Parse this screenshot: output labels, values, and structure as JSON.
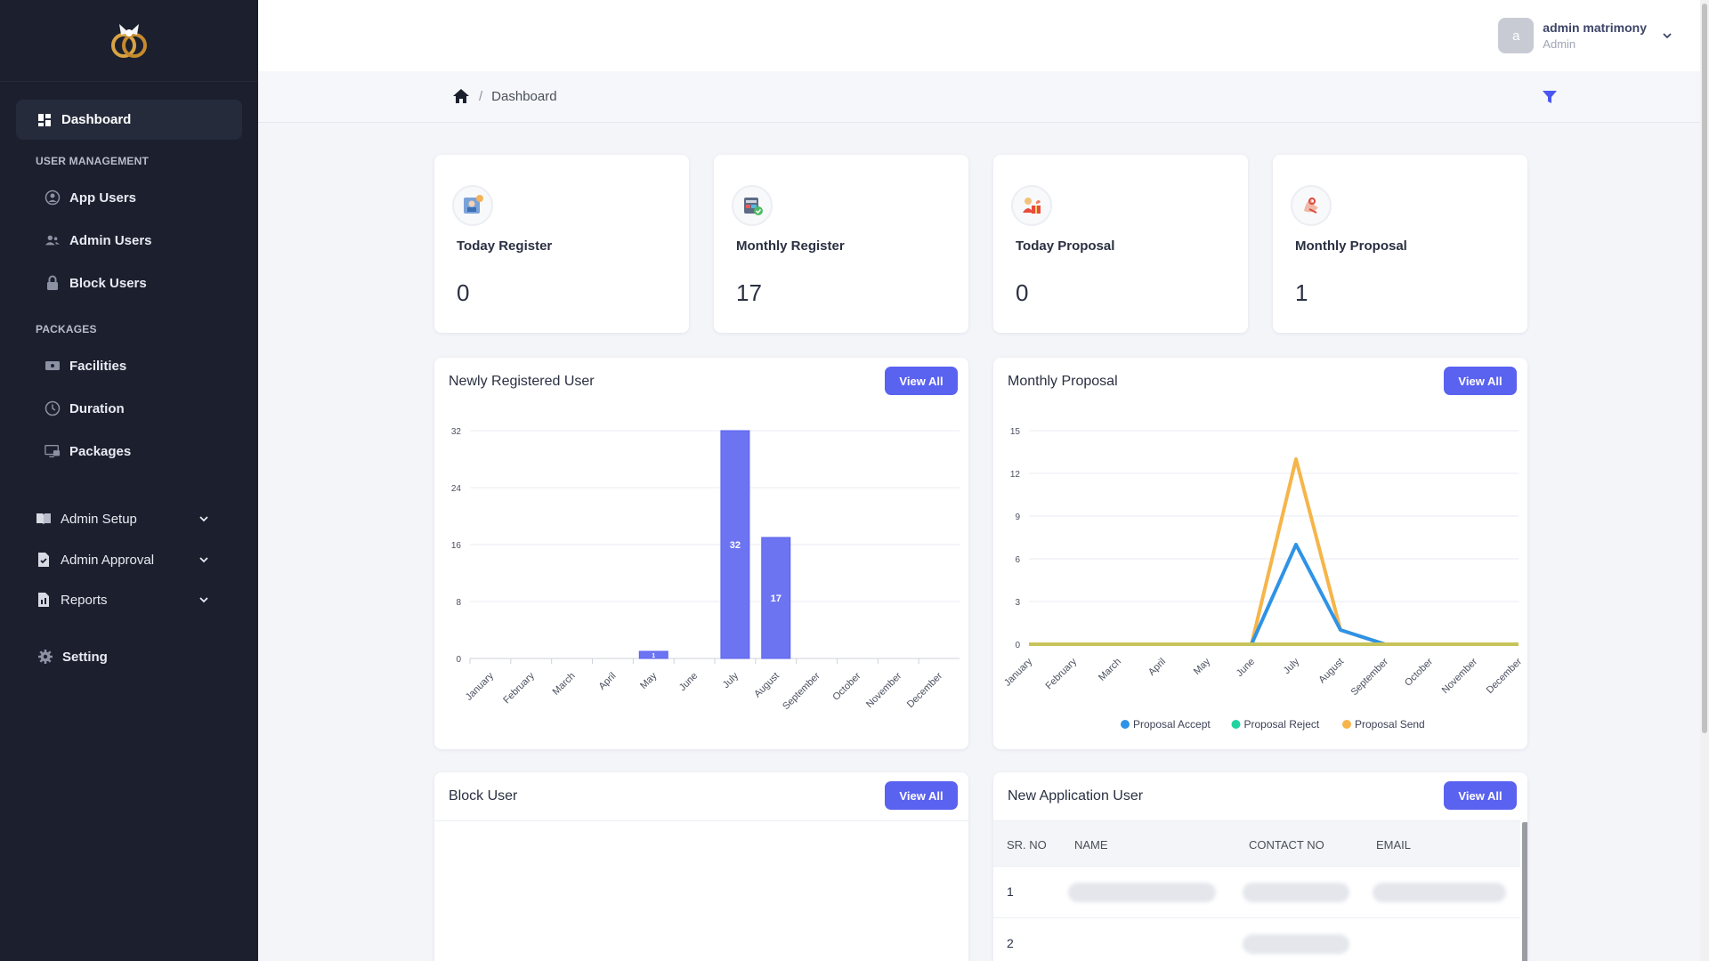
{
  "sidebar": {
    "active": "Dashboard",
    "sections": {
      "user_management": "USER MANAGEMENT",
      "packages": "PACKAGES"
    },
    "user_items": [
      "App Users",
      "Admin Users",
      "Block Users"
    ],
    "package_items": [
      "Facilities",
      "Duration",
      "Packages"
    ],
    "groups": [
      "Admin Setup",
      "Admin Approval",
      "Reports"
    ],
    "setting": "Setting"
  },
  "topbar": {
    "avatar_letter": "a",
    "user_name": "admin matrimony",
    "user_role": "Admin"
  },
  "breadcrumb": {
    "current": "Dashboard"
  },
  "stats": [
    {
      "label": "Today Register",
      "value": "0"
    },
    {
      "label": "Monthly Register",
      "value": "17"
    },
    {
      "label": "Today Proposal",
      "value": "0"
    },
    {
      "label": "Monthly Proposal",
      "value": "1"
    }
  ],
  "panels": {
    "newly_registered": {
      "title": "Newly Registered User",
      "button": "View All"
    },
    "monthly_proposal": {
      "title": "Monthly Proposal",
      "button": "View All"
    },
    "block_user": {
      "title": "Block User",
      "button": "View All"
    },
    "new_application": {
      "title": "New Application User",
      "button": "View All",
      "columns": [
        "SR. NO",
        "NAME",
        "CONTACT NO",
        "EMAIL"
      ],
      "rows": [
        {
          "sr": "1"
        },
        {
          "sr": "2"
        }
      ]
    }
  },
  "colors": {
    "accent": "#5a62f0",
    "sidebar": "#1b1f2e",
    "accept": "#2e93e6",
    "reject": "#22d3a0",
    "send": "#f6b54a"
  },
  "chart_data": [
    {
      "type": "bar",
      "categories": [
        "January",
        "February",
        "March",
        "April",
        "May",
        "June",
        "July",
        "August",
        "September",
        "October",
        "November",
        "December"
      ],
      "values": [
        0,
        0,
        0,
        0,
        1,
        0,
        32,
        17,
        0,
        0,
        0,
        0
      ],
      "data_labels": [
        "",
        "",
        "",
        "",
        "1",
        "",
        "32",
        "17",
        "",
        "",
        "",
        ""
      ],
      "yticks": [
        0,
        8,
        16,
        24,
        32
      ],
      "ylim": [
        0,
        32
      ],
      "grid": true
    },
    {
      "type": "line",
      "categories": [
        "January",
        "February",
        "March",
        "April",
        "May",
        "June",
        "July",
        "August",
        "September",
        "October",
        "November",
        "December"
      ],
      "series": [
        {
          "name": "Proposal Accept",
          "color": "#2e93e6",
          "values": [
            0,
            0,
            0,
            0,
            0,
            0,
            7,
            1,
            0,
            0,
            0,
            0
          ]
        },
        {
          "name": "Proposal Reject",
          "color": "#22d3a0",
          "values": [
            0,
            0,
            0,
            0,
            0,
            0,
            0,
            0,
            0,
            0,
            0,
            0
          ]
        },
        {
          "name": "Proposal Send",
          "color": "#f6b54a",
          "values": [
            0,
            0,
            0,
            0,
            0,
            0,
            13,
            1,
            0,
            0,
            0,
            0
          ]
        }
      ],
      "yticks": [
        0,
        3,
        6,
        9,
        12,
        15
      ],
      "ylim": [
        0,
        15
      ],
      "legend": "bottom",
      "grid": true
    }
  ]
}
